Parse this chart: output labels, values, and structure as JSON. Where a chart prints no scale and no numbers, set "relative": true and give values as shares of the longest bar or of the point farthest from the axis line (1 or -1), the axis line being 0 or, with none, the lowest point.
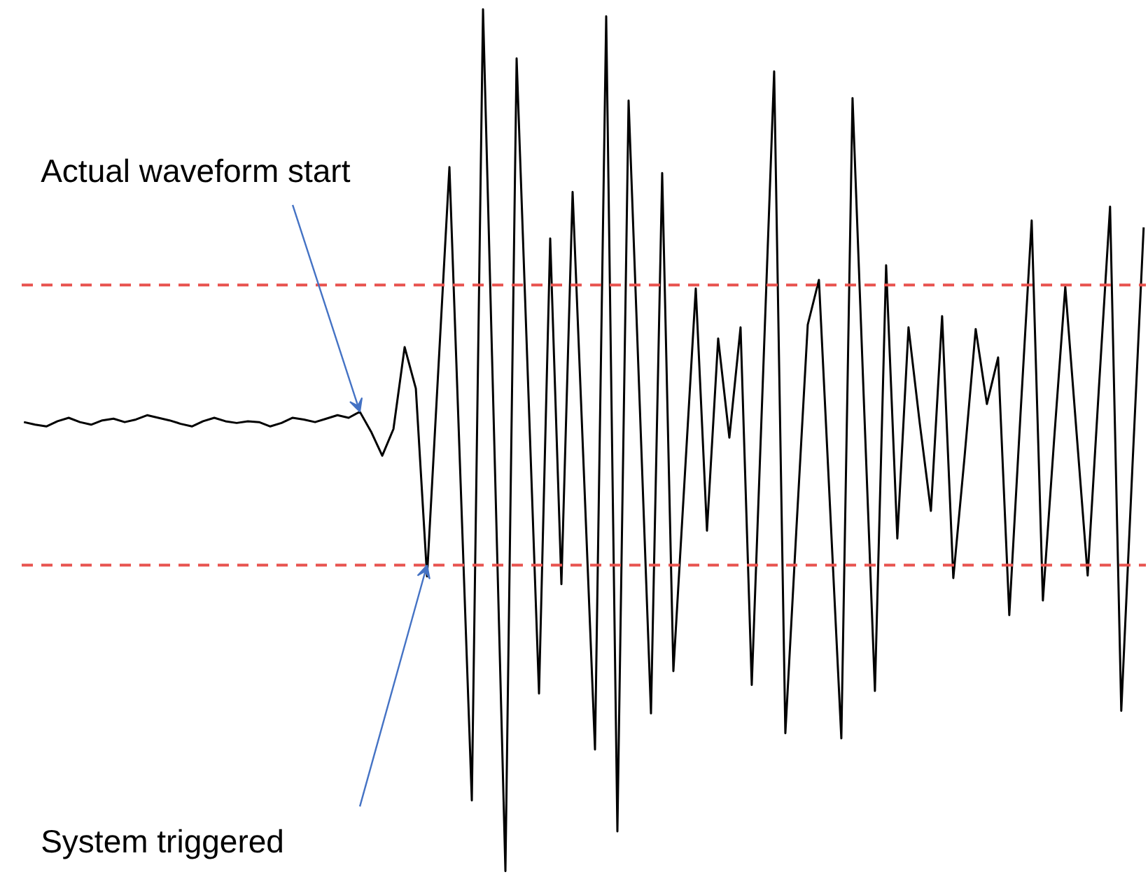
{
  "chart_data": {
    "type": "line",
    "relative": true,
    "tick_labels": false,
    "categories": [
      null,
      null,
      null,
      null,
      null,
      null,
      null,
      null,
      null,
      null,
      null,
      null,
      null,
      null,
      null,
      null,
      null,
      null,
      null,
      null,
      null,
      null,
      null,
      null,
      null,
      null,
      null,
      null,
      null,
      null,
      null,
      null,
      null,
      null,
      null,
      null,
      null,
      null,
      null,
      null,
      null,
      null,
      null,
      null,
      null,
      null,
      null,
      null,
      null,
      null,
      null,
      null,
      null,
      null,
      null,
      null,
      null,
      null,
      null,
      null,
      null,
      null,
      null,
      null,
      null,
      null,
      null,
      null,
      null,
      null,
      null,
      null,
      null,
      null,
      null,
      null,
      null,
      null,
      null,
      null,
      null,
      null,
      null,
      null,
      null,
      null,
      null,
      null,
      null,
      null,
      null,
      null,
      null,
      null,
      null,
      null,
      null,
      null,
      null,
      null,
      null
    ],
    "series": [
      {
        "color": "#000000",
        "values": [
          0.521,
          0.518,
          0.516,
          0.522,
          0.526,
          0.521,
          0.518,
          0.523,
          0.525,
          0.521,
          0.524,
          0.529,
          0.526,
          0.523,
          0.519,
          0.516,
          0.522,
          0.526,
          0.522,
          0.52,
          0.522,
          0.521,
          0.516,
          0.52,
          0.526,
          0.524,
          0.521,
          0.525,
          0.529,
          0.526,
          0.533,
          0.51,
          0.482,
          0.513,
          0.608,
          0.56,
          0.342,
          0.58,
          0.817,
          0.45,
          0.082,
          1.0,
          0.5,
          0,
          0.943,
          0.575,
          0.206,
          0.734,
          0.333,
          0.788,
          0.465,
          0.141,
          0.992,
          0.046,
          0.894,
          0.54,
          0.183,
          0.81,
          0.232,
          0.454,
          0.676,
          0.395,
          0.618,
          0.503,
          0.631,
          0.216,
          0.572,
          0.928,
          0.16,
          0.4,
          0.634,
          0.686,
          0.42,
          0.154,
          0.897,
          0.55,
          0.209,
          0.703,
          0.386,
          0.631,
          0.52,
          0.418,
          0.644,
          0.34,
          0.48,
          0.629,
          0.542,
          0.596,
          0.297,
          0.53,
          0.755,
          0.314,
          0.5,
          0.678,
          0.51,
          0.343,
          0.56,
          0.771,
          0.186,
          0.47,
          0.747
        ]
      }
    ],
    "ref_lines": [
      {
        "axis": "y",
        "value": 0.68,
        "color": "#e8534f",
        "line_style": "dashed"
      },
      {
        "axis": "y",
        "value": 0.355,
        "color": "#e8534f",
        "line_style": "dashed"
      }
    ],
    "annotations": [
      "Actual waveform start",
      "System triggered"
    ]
  }
}
